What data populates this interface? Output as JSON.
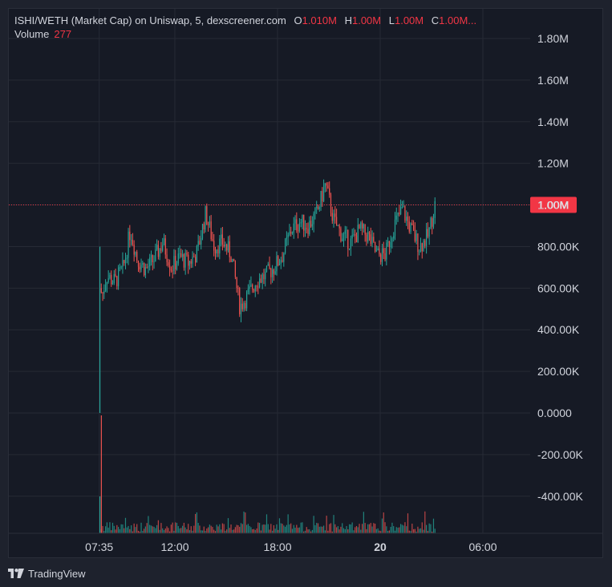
{
  "legend": {
    "title": "ISHI/WETH (Market Cap) on Uniswap, 5, dexscreener.com",
    "o_label": "O",
    "o_value": "1.010M",
    "h_label": "H",
    "h_value": "1.00M",
    "l_label": "L",
    "l_value": "1.00M",
    "c_label": "C",
    "c_value": "1.00M...",
    "volume_label": "Volume",
    "volume_value": "277"
  },
  "footer": {
    "brand": "TradingView"
  },
  "colors": {
    "up": "#26a69a",
    "down": "#ef5350",
    "price_line": "#f23645",
    "grid": "#262a35",
    "text": "#d1d4dc"
  },
  "chart_data": {
    "type": "candlestick",
    "y_ticks": [
      "1.80M",
      "1.60M",
      "1.40M",
      "1.20M",
      "1.00M",
      "800.00K",
      "600.00K",
      "400.00K",
      "200.00K",
      "0.0000",
      "-200.00K",
      "-400.00K"
    ],
    "y_tick_values": [
      1800000,
      1600000,
      1400000,
      1200000,
      1000000,
      800000,
      600000,
      400000,
      200000,
      0,
      -200000,
      -400000
    ],
    "x_ticks": [
      "07:35",
      "12:00",
      "18:00",
      "20",
      "06:00"
    ],
    "x_tick_hours": [
      7.58,
      12,
      18,
      24,
      30
    ],
    "current_price": 1000000,
    "current_price_label": "1.00M",
    "price_path": [
      [
        7.6,
        0
      ],
      [
        7.65,
        600000
      ],
      [
        7.75,
        560000
      ],
      [
        8.0,
        660000
      ],
      [
        8.5,
        630000
      ],
      [
        9.0,
        700000
      ],
      [
        9.4,
        880000
      ],
      [
        9.8,
        740000
      ],
      [
        10.3,
        690000
      ],
      [
        10.8,
        740000
      ],
      [
        11.3,
        820000
      ],
      [
        11.8,
        700000
      ],
      [
        12.3,
        750000
      ],
      [
        12.8,
        720000
      ],
      [
        13.3,
        770000
      ],
      [
        13.8,
        960000
      ],
      [
        14.3,
        800000
      ],
      [
        14.8,
        820000
      ],
      [
        15.3,
        760000
      ],
      [
        15.8,
        510000
      ],
      [
        16.3,
        570000
      ],
      [
        16.8,
        640000
      ],
      [
        17.3,
        660000
      ],
      [
        17.8,
        700000
      ],
      [
        18.3,
        760000
      ],
      [
        18.8,
        880000
      ],
      [
        19.3,
        920000
      ],
      [
        19.8,
        900000
      ],
      [
        20.3,
        960000
      ],
      [
        20.8,
        1100000
      ],
      [
        21.3,
        920000
      ],
      [
        21.8,
        850000
      ],
      [
        22.3,
        820000
      ],
      [
        22.8,
        880000
      ],
      [
        23.3,
        850000
      ],
      [
        23.8,
        760000
      ],
      [
        24.3,
        760000
      ],
      [
        24.8,
        900000
      ],
      [
        25.3,
        980000
      ],
      [
        25.8,
        880000
      ],
      [
        26.3,
        800000
      ],
      [
        26.8,
        850000
      ],
      [
        27.2,
        1000000
      ]
    ],
    "volume_axis": "overlay-bottom"
  }
}
